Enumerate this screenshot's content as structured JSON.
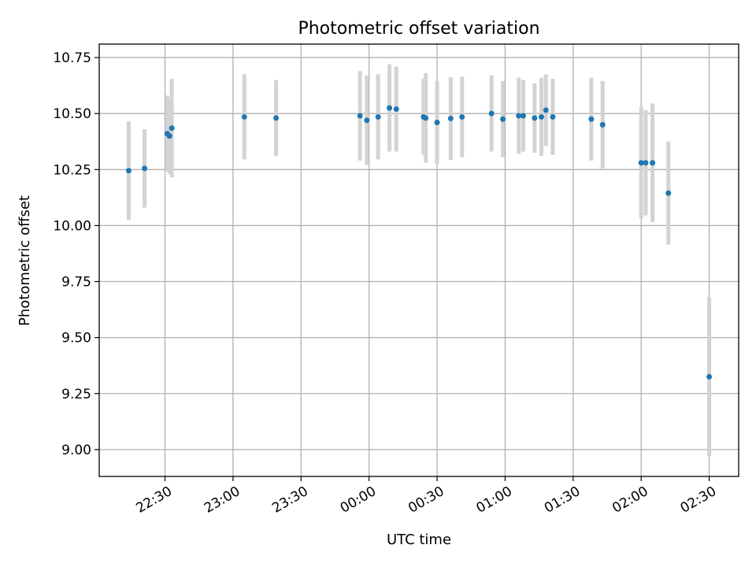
{
  "chart_data": {
    "type": "scatter",
    "title": "Photometric offset variation",
    "xlabel": "UTC time",
    "ylabel": "Photometric offset",
    "x_axis_type": "time",
    "xlim": [
      "22:01",
      "02:43"
    ],
    "ylim": [
      8.88,
      10.81
    ],
    "grid": true,
    "x_ticks": [
      "22:30",
      "23:00",
      "23:30",
      "00:00",
      "00:30",
      "01:00",
      "01:30",
      "02:00",
      "02:30"
    ],
    "y_ticks": [
      "9.00",
      "9.25",
      "9.50",
      "9.75",
      "10.00",
      "10.25",
      "10.50",
      "10.75"
    ],
    "point_color": "#1f77b4",
    "errorbar_color": "#d3d3d3",
    "points": [
      {
        "x": "22:14",
        "y": 10.245,
        "err": 0.22
      },
      {
        "x": "22:21",
        "y": 10.255,
        "err": 0.175
      },
      {
        "x": "22:31",
        "y": 10.41,
        "err": 0.17
      },
      {
        "x": "22:32",
        "y": 10.4,
        "err": 0.17
      },
      {
        "x": "22:33",
        "y": 10.435,
        "err": 0.22
      },
      {
        "x": "23:05",
        "y": 10.485,
        "err": 0.19
      },
      {
        "x": "23:19",
        "y": 10.48,
        "err": 0.17
      },
      {
        "x": "23:56",
        "y": 10.49,
        "err": 0.2
      },
      {
        "x": "23:59",
        "y": 10.47,
        "err": 0.2
      },
      {
        "x": "00:04",
        "y": 10.485,
        "err": 0.19
      },
      {
        "x": "00:09",
        "y": 10.525,
        "err": 0.195
      },
      {
        "x": "00:12",
        "y": 10.52,
        "err": 0.19
      },
      {
        "x": "00:24",
        "y": 10.485,
        "err": 0.17
      },
      {
        "x": "00:25",
        "y": 10.48,
        "err": 0.2
      },
      {
        "x": "00:30",
        "y": 10.46,
        "err": 0.185
      },
      {
        "x": "00:36",
        "y": 10.478,
        "err": 0.185
      },
      {
        "x": "00:41",
        "y": 10.485,
        "err": 0.18
      },
      {
        "x": "00:54",
        "y": 10.5,
        "err": 0.17
      },
      {
        "x": "00:59",
        "y": 10.475,
        "err": 0.17
      },
      {
        "x": "01:06",
        "y": 10.49,
        "err": 0.17
      },
      {
        "x": "01:08",
        "y": 10.49,
        "err": 0.16
      },
      {
        "x": "01:13",
        "y": 10.48,
        "err": 0.155
      },
      {
        "x": "01:16",
        "y": 10.485,
        "err": 0.175
      },
      {
        "x": "01:18",
        "y": 10.515,
        "err": 0.16
      },
      {
        "x": "01:21",
        "y": 10.485,
        "err": 0.17
      },
      {
        "x": "01:38",
        "y": 10.475,
        "err": 0.185
      },
      {
        "x": "01:43",
        "y": 10.45,
        "err": 0.195
      },
      {
        "x": "02:00",
        "y": 10.28,
        "err": 0.25
      },
      {
        "x": "02:02",
        "y": 10.28,
        "err": 0.235
      },
      {
        "x": "02:05",
        "y": 10.28,
        "err": 0.265
      },
      {
        "x": "02:12",
        "y": 10.145,
        "err": 0.23
      },
      {
        "x": "02:30",
        "y": 9.325,
        "err": 0.355
      }
    ]
  }
}
